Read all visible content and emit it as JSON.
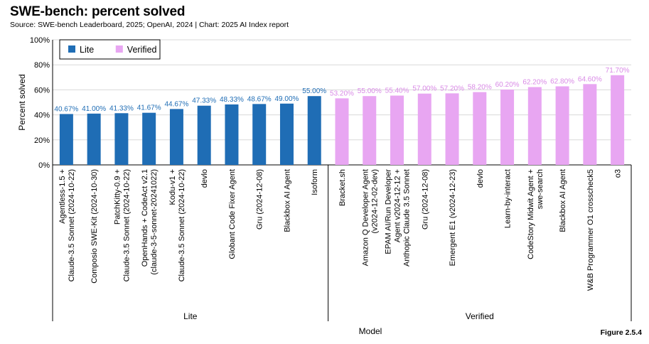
{
  "figure_label": "Figure 2.5.4",
  "chart_data": {
    "type": "bar",
    "title": "SWE-bench: percent solved",
    "subtitle": "Source: SWE-bench Leaderboard, 2025; OpenAI, 2024 | Chart: 2025 AI Index report",
    "xlabel": "Model",
    "ylabel": "Percent solved",
    "ylim": [
      0,
      100
    ],
    "yticks": [
      0,
      20,
      40,
      60,
      80,
      100
    ],
    "ytick_labels": [
      "0%",
      "20%",
      "40%",
      "60%",
      "80%",
      "100%"
    ],
    "grid": true,
    "legend_position": "top-left",
    "series": [
      {
        "name": "Lite",
        "color": "#1f6db5",
        "label_color": "#1f6db5",
        "categories": [
          [
            "Agentless-1.5 +",
            "Claude-3.5 Sonnet (2024-10-22)"
          ],
          [
            "Composio SWE-Kit (2024-10-30)"
          ],
          [
            "PatchKitty-0.9 +",
            "Claude-3.5 Sonnet (2024-10-22)"
          ],
          [
            "OpenHands + CodeAct v2.1",
            "(claude-3-5-sonnet-20241022)"
          ],
          [
            "Kodu-v1 +",
            "Claude-3.5 Sonnet (2024-10-22)"
          ],
          [
            "devlo"
          ],
          [
            "Globant Code Fixer Agent"
          ],
          [
            "Gru (2024-12-08)"
          ],
          [
            "Blackbox AI Agent"
          ],
          [
            "Isoform"
          ]
        ],
        "values": [
          40.67,
          41.0,
          41.33,
          41.67,
          44.67,
          47.33,
          48.33,
          48.67,
          49.0,
          55.0
        ],
        "value_labels": [
          "40.67%",
          "41.00%",
          "41.33%",
          "41.67%",
          "44.67%",
          "47.33%",
          "48.33%",
          "48.67%",
          "49.00%",
          "55.00%"
        ]
      },
      {
        "name": "Verified",
        "color": "#e8a6f2",
        "label_color": "#d98ae6",
        "categories": [
          [
            "Bracket.sh"
          ],
          [
            "Amazon Q Developer Agent",
            "(v2024-12-02-dev)"
          ],
          [
            "EPAM AI/Run Developer",
            "Agent v2024-12-12 +",
            "Anthopic Claude 3.5 Sonnet"
          ],
          [
            "Gru (2024-12-08)"
          ],
          [
            "Emergent E1 (v2024-12-23)"
          ],
          [
            "devlo"
          ],
          [
            "Learn-by-interact"
          ],
          [
            "CodeStory Midwit Agent +",
            "swe-search"
          ],
          [
            "Blackbox AI Agent"
          ],
          [
            "W&B Programmer O1 crosscheck5"
          ],
          [
            "o3"
          ]
        ],
        "values": [
          53.2,
          55.0,
          55.4,
          57.0,
          57.2,
          58.2,
          60.2,
          62.2,
          62.8,
          64.6,
          71.7
        ],
        "value_labels": [
          "53.20%",
          "55.00%",
          "55.40%",
          "57.00%",
          "57.20%",
          "58.20%",
          "60.20%",
          "62.20%",
          "62.80%",
          "64.60%",
          "71.70%"
        ]
      }
    ],
    "groups": [
      "Lite",
      "Verified"
    ]
  }
}
